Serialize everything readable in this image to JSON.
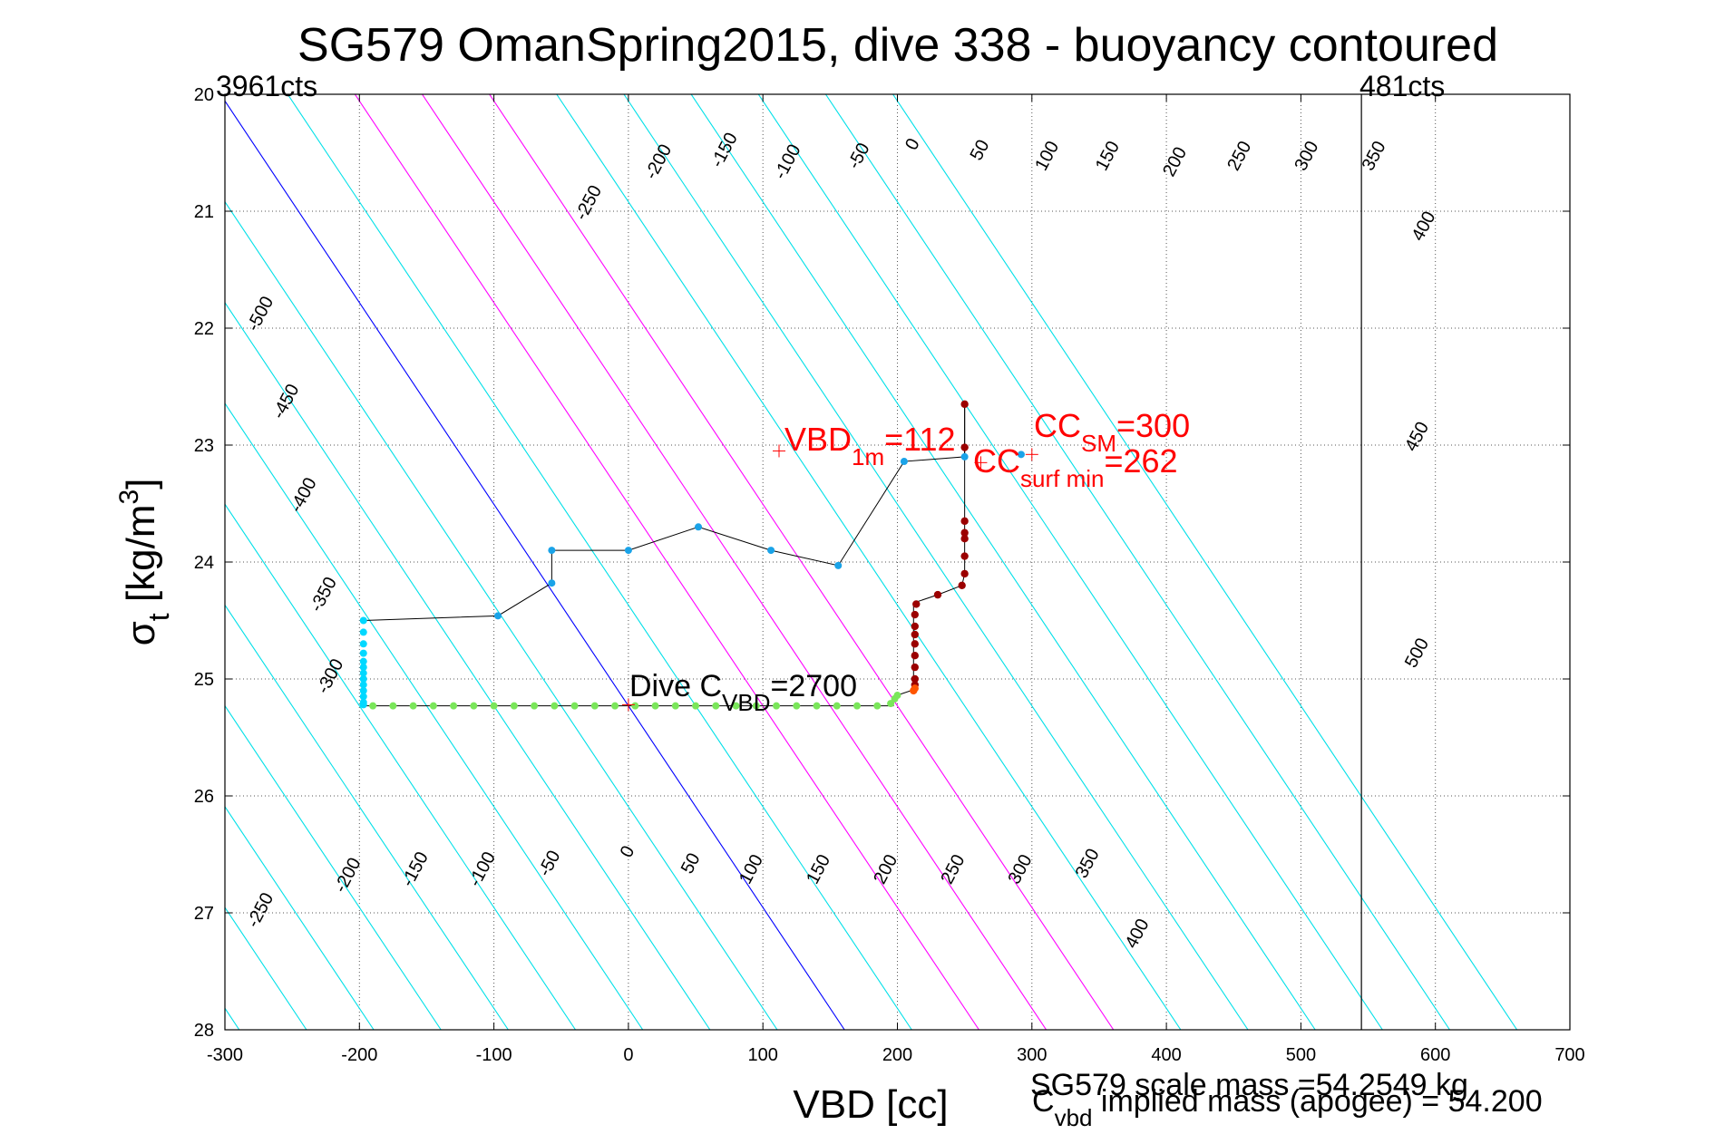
{
  "chart_data": {
    "type": "scatter",
    "title": "SG579 OmanSpring2015, dive 338 - buoyancy contoured",
    "xlabel": "VBD [cc]",
    "ylabel_main": "σ",
    "ylabel_sub": "t",
    "ylabel_rest": " [kg/m",
    "ylabel_sup": "3",
    "ylabel_end": "]",
    "xlim": [
      -300,
      700
    ],
    "ylim": [
      20,
      28
    ],
    "y_reversed": true,
    "grid": "dotted",
    "x_ticks": [
      "-300",
      "-200",
      "-100",
      "0",
      "100",
      "200",
      "300",
      "400",
      "500",
      "600",
      "700"
    ],
    "y_ticks": [
      "20",
      "21",
      "22",
      "23",
      "24",
      "25",
      "26",
      "27",
      "28"
    ],
    "contour_slope_cc_per_sigma": 58,
    "contours": {
      "cyan": [
        -500,
        -450,
        -400,
        -350,
        -300,
        -250,
        -200,
        -150,
        -100,
        -50,
        50,
        250,
        300,
        350,
        400,
        450,
        500
      ],
      "blue": [
        0
      ],
      "magenta": [
        100,
        150,
        200
      ],
      "labels": [
        {
          "text": "-500",
          "x": -270,
          "y": 21.9
        },
        {
          "text": "-450",
          "x": -251,
          "y": 22.65
        },
        {
          "text": "-400",
          "x": -238,
          "y": 23.45
        },
        {
          "text": "-350",
          "x": -223,
          "y": 24.3
        },
        {
          "text": "-300",
          "x": -218,
          "y": 25.0
        },
        {
          "text": "-250",
          "x": -26,
          "y": 20.95
        },
        {
          "text": "-200",
          "x": 26,
          "y": 20.6
        },
        {
          "text": "-150",
          "x": 75,
          "y": 20.5
        },
        {
          "text": "-100",
          "x": 122,
          "y": 20.6
        },
        {
          "text": "-50",
          "x": 175,
          "y": 20.55
        },
        {
          "text": "0",
          "x": 215,
          "y": 20.45
        },
        {
          "text": "50",
          "x": 265,
          "y": 20.5
        },
        {
          "text": "100",
          "x": 315,
          "y": 20.55
        },
        {
          "text": "150",
          "x": 360,
          "y": 20.55
        },
        {
          "text": "200",
          "x": 410,
          "y": 20.6
        },
        {
          "text": "250",
          "x": 458,
          "y": 20.55
        },
        {
          "text": "300",
          "x": 508,
          "y": 20.55
        },
        {
          "text": "350",
          "x": 558,
          "y": 20.55
        },
        {
          "text": "400",
          "x": 595,
          "y": 21.15
        },
        {
          "text": "450",
          "x": 590,
          "y": 22.95
        },
        {
          "text": "500",
          "x": 590,
          "y": 24.8
        },
        {
          "text": "-250",
          "x": -270,
          "y": 27.0
        },
        {
          "text": "-200",
          "x": -205,
          "y": 26.7
        },
        {
          "text": "-150",
          "x": -155,
          "y": 26.65
        },
        {
          "text": "-100",
          "x": -105,
          "y": 26.65
        },
        {
          "text": "-50",
          "x": -55,
          "y": 26.6
        },
        {
          "text": "0",
          "x": 3,
          "y": 26.5
        },
        {
          "text": "50",
          "x": 50,
          "y": 26.6
        },
        {
          "text": "100",
          "x": 95,
          "y": 26.65
        },
        {
          "text": "150",
          "x": 145,
          "y": 26.65
        },
        {
          "text": "200",
          "x": 195,
          "y": 26.65
        },
        {
          "text": "250",
          "x": 245,
          "y": 26.65
        },
        {
          "text": "300",
          "x": 295,
          "y": 26.65
        },
        {
          "text": "350",
          "x": 345,
          "y": 26.6
        },
        {
          "text": "400",
          "x": 382,
          "y": 27.2
        }
      ]
    },
    "upper_path": {
      "color": "#000000",
      "points": [
        [
          -197,
          24.5
        ],
        [
          -97,
          24.46
        ],
        [
          -57,
          24.18
        ],
        [
          -57,
          23.9
        ],
        [
          0,
          23.9
        ],
        [
          52,
          23.7
        ],
        [
          106,
          23.9
        ],
        [
          156,
          24.03
        ],
        [
          205,
          23.14
        ],
        [
          250,
          23.1
        ],
        [
          250,
          23.07
        ],
        [
          250,
          22.65
        ]
      ]
    },
    "upper_dots": {
      "color": "#1aa3e8",
      "points": [
        [
          -97,
          24.46
        ],
        [
          -57,
          24.18
        ],
        [
          -57,
          23.9
        ],
        [
          0,
          23.9
        ],
        [
          52,
          23.7
        ],
        [
          106,
          23.9
        ],
        [
          156,
          24.03
        ],
        [
          205,
          23.14
        ],
        [
          250,
          23.1
        ],
        [
          292,
          23.08
        ]
      ]
    },
    "red_path": {
      "color": "#000000",
      "points": [
        [
          212,
          25.05
        ],
        [
          212,
          24.35
        ],
        [
          230,
          24.28
        ],
        [
          248,
          24.2
        ],
        [
          250,
          24.1
        ],
        [
          250,
          23.65
        ],
        [
          250,
          23.02
        ],
        [
          250,
          22.65
        ]
      ]
    },
    "red_dots": {
      "color": "#9b0000",
      "points": [
        [
          250,
          22.65
        ],
        [
          250,
          23.02
        ],
        [
          250,
          23.65
        ],
        [
          250,
          23.75
        ],
        [
          250,
          23.8
        ],
        [
          250,
          23.95
        ],
        [
          250,
          24.1
        ],
        [
          248,
          24.2
        ],
        [
          230,
          24.28
        ],
        [
          214,
          24.36
        ],
        [
          213,
          24.45
        ],
        [
          213,
          24.55
        ],
        [
          213,
          24.62
        ],
        [
          213,
          24.7
        ],
        [
          213,
          24.8
        ],
        [
          213,
          24.9
        ],
        [
          213,
          25.0
        ],
        [
          213,
          25.05
        ]
      ]
    },
    "orange_dots": {
      "color": "#ff5500",
      "points": [
        [
          213,
          25.08
        ],
        [
          212,
          25.1
        ]
      ]
    },
    "cyan_dots": {
      "color": "#00d8ff",
      "points": [
        [
          -197,
          24.5
        ],
        [
          -197,
          24.6
        ],
        [
          -197,
          24.7
        ],
        [
          -197,
          24.78
        ],
        [
          -197,
          24.85
        ],
        [
          -197,
          24.9
        ],
        [
          -197,
          24.95
        ],
        [
          -197,
          25.0
        ],
        [
          -197,
          25.05
        ],
        [
          -197,
          25.1
        ],
        [
          -197,
          25.15
        ],
        [
          -197,
          25.2
        ],
        [
          -197,
          25.22
        ]
      ]
    },
    "green_path": {
      "color": "#000000",
      "points": [
        [
          -197,
          25.23
        ],
        [
          197,
          25.23
        ],
        [
          197,
          25.15
        ],
        [
          210,
          25.1
        ]
      ]
    },
    "green_dots": {
      "color": "#7ae65a",
      "points": [
        [
          -190,
          25.23
        ],
        [
          -175,
          25.23
        ],
        [
          -160,
          25.23
        ],
        [
          -145,
          25.23
        ],
        [
          -130,
          25.23
        ],
        [
          -115,
          25.23
        ],
        [
          -100,
          25.23
        ],
        [
          -85,
          25.23
        ],
        [
          -70,
          25.23
        ],
        [
          -55,
          25.23
        ],
        [
          -40,
          25.23
        ],
        [
          -25,
          25.23
        ],
        [
          -10,
          25.23
        ],
        [
          5,
          25.23
        ],
        [
          20,
          25.23
        ],
        [
          35,
          25.23
        ],
        [
          50,
          25.23
        ],
        [
          65,
          25.23
        ],
        [
          80,
          25.23
        ],
        [
          95,
          25.23
        ],
        [
          110,
          25.23
        ],
        [
          125,
          25.23
        ],
        [
          140,
          25.23
        ],
        [
          155,
          25.23
        ],
        [
          170,
          25.23
        ],
        [
          185,
          25.23
        ],
        [
          195,
          25.21
        ],
        [
          198,
          25.17
        ],
        [
          200,
          25.14
        ]
      ]
    },
    "vertical_lines": [
      545
    ],
    "annotations": {
      "top_left": "3961cts",
      "top_right": "481cts",
      "vbd1m": {
        "main": "VBD",
        "sub": "1m",
        "rest": "=112",
        "x": 112,
        "y": 23.05,
        "color": "#ff0000"
      },
      "ccsm": {
        "main": "CC",
        "sub": "SM",
        "rest": "=300",
        "x": 300,
        "y": 23.08,
        "color": "#ff0000"
      },
      "ccsurf": {
        "main": "CC",
        "sub": "surf min",
        "rest": "=262",
        "x": 262,
        "y": 23.15,
        "color": "#ff0000"
      },
      "dive": {
        "main": "Dive C",
        "sub": "VBD",
        "rest": "=2700",
        "x": 0,
        "y": 25.22,
        "color": "#000000"
      },
      "scale_mass": "SG579 scale mass =54.2549 kg",
      "cvbd_main": "C",
      "cvbd_sub": "vbd",
      "cvbd_rest": " implied mass (apogee) = 54.200"
    }
  }
}
